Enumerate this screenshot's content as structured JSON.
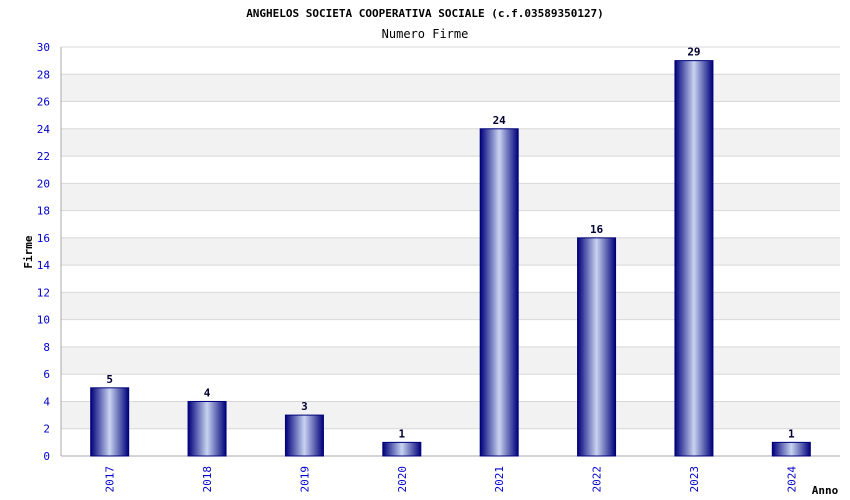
{
  "chart_data": {
    "type": "bar",
    "title": "ANGHELOS SOCIETA COOPERATIVA SOCIALE (c.f.03589350127)",
    "subtitle": "Numero Firme",
    "xlabel": "Anno",
    "ylabel": "Firme",
    "categories": [
      "2017",
      "2018",
      "2019",
      "2020",
      "2021",
      "2022",
      "2023",
      "2024"
    ],
    "values": [
      5,
      4,
      3,
      1,
      24,
      16,
      29,
      1
    ],
    "ylim": [
      0,
      30
    ],
    "yticks": [
      0,
      2,
      4,
      6,
      8,
      10,
      12,
      14,
      16,
      18,
      20,
      22,
      24,
      26,
      28,
      30
    ],
    "grid": true,
    "colors": {
      "bar_dark": "#00007a",
      "bar_light": "#c8d4f0",
      "band": "#f2f2f2",
      "gridline": "#d8d8d8",
      "tick_text": "#0000cc",
      "axis": "#aaaaaa"
    }
  }
}
